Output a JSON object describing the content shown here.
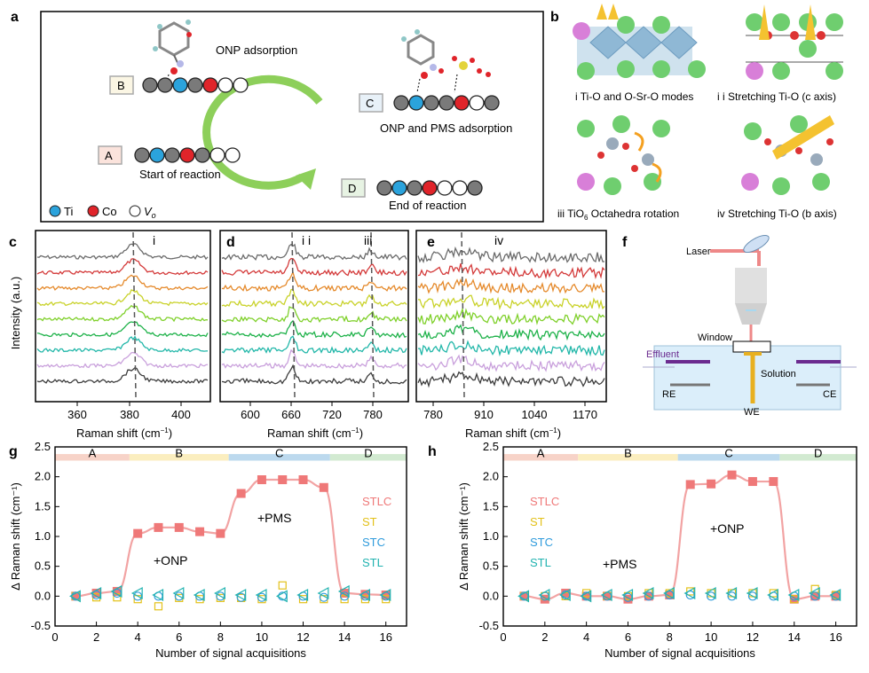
{
  "panel_letters": {
    "a": "a",
    "b": "b",
    "c": "c",
    "d": "d",
    "e": "e",
    "f": "f",
    "g": "g",
    "h": "h"
  },
  "panel_a": {
    "adsorption_onp": "ONP adsorption",
    "adsorption_onp_pms": "ONP and PMS adsorption",
    "start": "Start of reaction",
    "end": "End of reaction",
    "states": {
      "A": "A",
      "B": "B",
      "C": "C",
      "D": "D"
    },
    "legend": {
      "ti": "Ti",
      "co": "Co",
      "vo": "V",
      "vo_sub": "o"
    },
    "colors": {
      "ti": "#2ba3dc",
      "co": "#e0242a",
      "grey": "#7a7a7a",
      "vacancy": "#ffffff",
      "arrow": "#8dcf5a"
    }
  },
  "panel_b": {
    "captions": {
      "i": "i  Ti-O and O-Sr-O modes",
      "ii": "i i     Stretching Ti-O (c axis)",
      "iii_pre": "iii  TiO",
      "iii_sub": "6",
      "iii_post": " Octahedra rotation",
      "iv": "iv  Stretching Ti-O (b axis)"
    }
  },
  "panel_f": {
    "laser": "Laser",
    "window": "Window",
    "effluent": "Effluent",
    "solution": "Solution",
    "re": "RE",
    "we": "WE",
    "ce": "CE"
  },
  "spectra": {
    "ylabel": "Intensity (a.u.)",
    "xlabel_pre": "Raman shift (cm",
    "xlabel_sup": "−1",
    "xlabel_post": ")",
    "mode_labels": {
      "c": "i",
      "d_ii": "i i",
      "d_iii": "iii",
      "e": "iv"
    },
    "c_ticks": [
      "360",
      "380",
      "400"
    ],
    "d_ticks": [
      "600",
      "660",
      "720",
      "780"
    ],
    "e_ticks": [
      "780",
      "910",
      "1040",
      "1170"
    ],
    "trace_colors": [
      "#6b6b6b",
      "#d43a3a",
      "#e58a2c",
      "#c9d22a",
      "#7fd02a",
      "#1fb24a",
      "#22b7a9",
      "#c9a0dc",
      "#3c3c3c"
    ]
  },
  "chart_data": [
    {
      "type": "scatter",
      "panel": "g",
      "xlabel": "Number of signal acquisitions",
      "ylabel": "Δ Raman shift (cm⁻¹)",
      "xlim": [
        0,
        17
      ],
      "ylim": [
        -0.5,
        2.5
      ],
      "xticks": [
        0,
        2,
        4,
        6,
        8,
        10,
        12,
        14,
        16
      ],
      "yticks": [
        -0.5,
        0.0,
        0.5,
        1.0,
        1.5,
        2.0,
        2.5
      ],
      "phases": [
        {
          "label": "A",
          "from": 0,
          "to": 3.6,
          "color": "#f7d3c8"
        },
        {
          "label": "B",
          "from": 3.6,
          "to": 8.4,
          "color": "#fbeebf"
        },
        {
          "label": "C",
          "from": 8.4,
          "to": 13.3,
          "color": "#bcd9ee"
        },
        {
          "label": "D",
          "from": 13.3,
          "to": 17,
          "color": "#d2ead1"
        }
      ],
      "annotations": [
        "+ONP",
        "+PMS"
      ],
      "legend": [
        {
          "name": "STLC",
          "color": "#ef7878"
        },
        {
          "name": "ST",
          "color": "#e3c11a"
        },
        {
          "name": "STC",
          "color": "#2f9bdc"
        },
        {
          "name": "STL",
          "color": "#21b3b0"
        }
      ],
      "x": [
        1,
        2,
        3,
        4,
        5,
        6,
        7,
        8,
        9,
        10,
        11,
        12,
        13,
        14,
        15,
        16
      ],
      "series": [
        {
          "name": "STLC",
          "marker": "square",
          "values": [
            0.0,
            0.05,
            0.08,
            1.05,
            1.15,
            1.15,
            1.08,
            1.05,
            1.72,
            1.95,
            1.95,
            1.95,
            1.82,
            0.05,
            0.03,
            0.02
          ]
        },
        {
          "name": "ST",
          "marker": "square-open",
          "values": [
            0.0,
            -0.02,
            -0.02,
            -0.05,
            -0.17,
            -0.03,
            -0.05,
            -0.03,
            -0.03,
            -0.05,
            0.18,
            -0.05,
            -0.05,
            -0.05,
            -0.05,
            -0.05
          ]
        },
        {
          "name": "STC",
          "marker": "circle-open",
          "values": [
            0.0,
            0.02,
            0.05,
            0.0,
            0.0,
            0.0,
            0.0,
            0.0,
            -0.02,
            -0.02,
            0.0,
            0.0,
            -0.02,
            0.0,
            0.0,
            0.0
          ]
        },
        {
          "name": "STL",
          "marker": "triangle-open",
          "values": [
            0.0,
            0.05,
            0.08,
            0.05,
            0.02,
            0.05,
            0.02,
            0.05,
            0.02,
            0.02,
            0.0,
            0.02,
            0.05,
            0.08,
            0.02,
            0.02
          ]
        }
      ],
      "fit_curve": "STLC"
    },
    {
      "type": "scatter",
      "panel": "h",
      "xlabel": "Number of signal acquisitions",
      "ylabel": "Δ Raman shift (cm⁻¹)",
      "xlim": [
        0,
        17
      ],
      "ylim": [
        -0.5,
        2.5
      ],
      "xticks": [
        0,
        2,
        4,
        6,
        8,
        10,
        12,
        14,
        16
      ],
      "yticks": [
        -0.5,
        0.0,
        0.5,
        1.0,
        1.5,
        2.0,
        2.5
      ],
      "phases": [
        {
          "label": "A",
          "from": 0,
          "to": 3.6,
          "color": "#f7d3c8"
        },
        {
          "label": "B",
          "from": 3.6,
          "to": 8.4,
          "color": "#fbeebf"
        },
        {
          "label": "C",
          "from": 8.4,
          "to": 13.3,
          "color": "#bcd9ee"
        },
        {
          "label": "D",
          "from": 13.3,
          "to": 17,
          "color": "#d2ead1"
        }
      ],
      "annotations": [
        "+ONP",
        "+PMS"
      ],
      "legend": [
        {
          "name": "STLC",
          "color": "#ef7878"
        },
        {
          "name": "ST",
          "color": "#e3c11a"
        },
        {
          "name": "STC",
          "color": "#2f9bdc"
        },
        {
          "name": "STL",
          "color": "#21b3b0"
        }
      ],
      "x": [
        1,
        2,
        3,
        4,
        5,
        6,
        7,
        8,
        9,
        10,
        11,
        12,
        13,
        14,
        15,
        16
      ],
      "series": [
        {
          "name": "STLC",
          "marker": "square",
          "values": [
            0.0,
            -0.05,
            0.05,
            0.0,
            0.0,
            -0.05,
            0.0,
            0.02,
            1.87,
            1.88,
            2.03,
            1.92,
            1.92,
            -0.05,
            0.0,
            0.0
          ]
        },
        {
          "name": "ST",
          "marker": "square-open",
          "values": [
            0.0,
            0.0,
            0.0,
            0.05,
            0.0,
            0.0,
            0.05,
            0.05,
            0.08,
            0.05,
            0.05,
            0.05,
            0.05,
            -0.05,
            0.12,
            0.02
          ]
        },
        {
          "name": "STC",
          "marker": "circle-open",
          "values": [
            0.0,
            0.0,
            0.02,
            0.0,
            0.0,
            -0.02,
            0.0,
            0.02,
            0.02,
            0.0,
            0.0,
            0.0,
            0.0,
            0.0,
            0.0,
            0.0
          ]
        },
        {
          "name": "STL",
          "marker": "triangle-open",
          "values": [
            0.0,
            0.02,
            0.02,
            0.0,
            0.02,
            0.02,
            0.05,
            0.05,
            0.05,
            0.05,
            0.05,
            0.05,
            0.02,
            0.02,
            0.05,
            0.02
          ]
        }
      ],
      "fit_curve": "STLC"
    }
  ]
}
